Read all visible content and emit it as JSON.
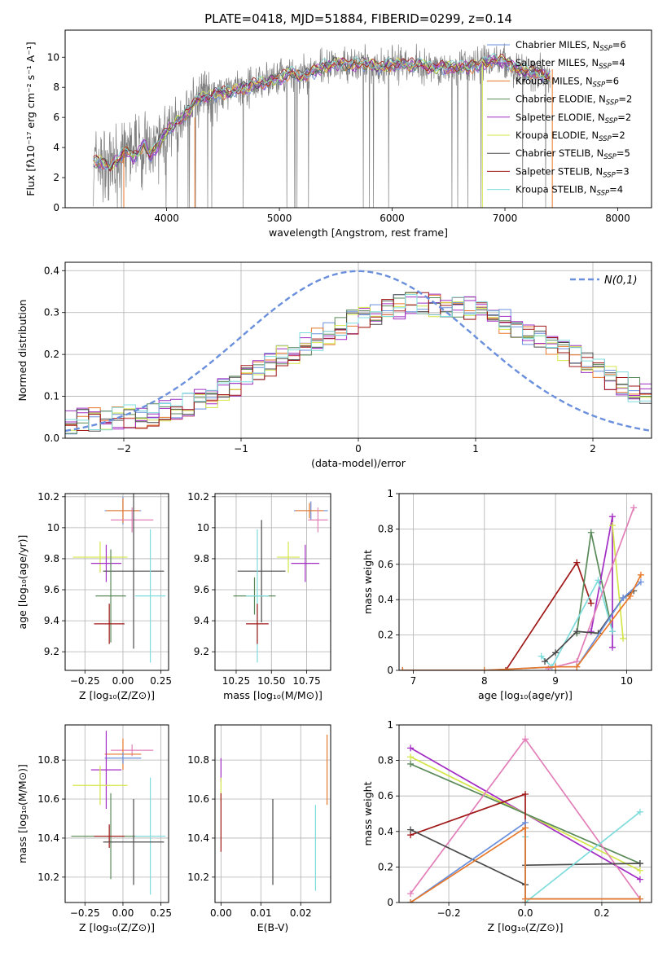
{
  "chart_data": [
    {
      "id": "spectrum",
      "type": "line",
      "title": "PLATE=0418, MJD=51884, FIBERID=0299, z=0.14",
      "xlabel": "wavelength [Angstrom, rest frame]",
      "ylabel": "Flux [fλ10⁻¹⁷ erg cm⁻² s⁻¹ A⁻¹]",
      "xlim": [
        3100,
        8300
      ],
      "ylim": [
        0,
        11.8
      ],
      "xticks": [
        4000,
        5000,
        6000,
        7000,
        8000
      ],
      "yticks": [
        0,
        2,
        4,
        6,
        8,
        10
      ],
      "grid": false,
      "legend_position": "top-right",
      "data_x_range": [
        3350,
        7400
      ],
      "data_curve": {
        "x": [
          3350,
          3400,
          3450,
          3500,
          3550,
          3600,
          3650,
          3700,
          3750,
          3800,
          3850,
          3900,
          3950,
          4000,
          4100,
          4200,
          4300,
          4400,
          4500,
          4600,
          4700,
          4800,
          4900,
          5000,
          5100,
          5200,
          5300,
          5400,
          5500,
          5600,
          5700,
          5800,
          5900,
          6000,
          6100,
          6200,
          6300,
          6400,
          6500,
          6600,
          6700,
          6800,
          6900,
          7000,
          7100,
          7200,
          7300,
          7400
        ],
        "y": [
          3.0,
          3.1,
          2.9,
          2.7,
          3.2,
          3.4,
          3.7,
          3.3,
          3.8,
          4.3,
          3.5,
          3.8,
          4.5,
          5.1,
          5.8,
          6.4,
          7.4,
          7.5,
          7.6,
          7.8,
          8.0,
          8.2,
          8.4,
          8.6,
          8.9,
          8.8,
          9.0,
          9.4,
          9.6,
          9.5,
          9.5,
          9.6,
          9.3,
          9.5,
          9.6,
          9.5,
          9.4,
          9.3,
          9.3,
          9.4,
          9.3,
          9.6,
          9.8,
          9.7,
          9.3,
          9.0,
          8.9,
          8.8
        ]
      },
      "series": [
        {
          "name": "Chabrier MILES, N_SSP=6",
          "color": "#6a8fdc"
        },
        {
          "name": "Salpeter MILES, N_SSP=4",
          "color": "#9b2fbf"
        },
        {
          "name": "Kroupa MILES, N_SSP=6",
          "color": "#e8782a"
        },
        {
          "name": "Chabrier ELODIE, N_SSP=2",
          "color": "#5a8a5a"
        },
        {
          "name": "Salpeter ELODIE, N_SSP=2",
          "color": "#a32cc4"
        },
        {
          "name": "Kroupa ELODIE, N_SSP=2",
          "color": "#d4e64a"
        },
        {
          "name": "Chabrier STELIB, N_SSP=5",
          "color": "#4a4a4a"
        },
        {
          "name": "Salpeter STELIB, N_SSP=3",
          "color": "#a01818"
        },
        {
          "name": "Kroupa STELIB, N_SSP=4",
          "color": "#7fdcdc"
        }
      ],
      "legend_entries": [
        {
          "pre": "Chabrier MILES, N",
          "sub": "SSP",
          "post": "=6",
          "color": "#6a8fdc"
        },
        {
          "pre": "Salpeter MILES, N",
          "sub": "SSP",
          "post": "=4",
          "color": "#9b2fbf"
        },
        {
          "pre": "Kroupa MILES, N",
          "sub": "SSP",
          "post": "=6",
          "color": "#e8782a"
        },
        {
          "pre": "Chabrier ELODIE, N",
          "sub": "SSP",
          "post": "=2",
          "color": "#5a8a5a"
        },
        {
          "pre": "Salpeter ELODIE, N",
          "sub": "SSP",
          "post": "=2",
          "color": "#a32cc4"
        },
        {
          "pre": "Kroupa ELODIE, N",
          "sub": "SSP",
          "post": "=2",
          "color": "#d4e64a"
        },
        {
          "pre": "Chabrier STELIB, N",
          "sub": "SSP",
          "post": "=5",
          "color": "#4a4a4a"
        },
        {
          "pre": "Salpeter STELIB, N",
          "sub": "SSP",
          "post": "=3",
          "color": "#a01818"
        },
        {
          "pre": "Kroupa STELIB, N",
          "sub": "SSP",
          "post": "=4",
          "color": "#7fdcdc"
        }
      ]
    },
    {
      "id": "residuals",
      "type": "line",
      "xlabel": "(data-model)/error",
      "ylabel": "Normed distribution",
      "xlim": [
        -2.5,
        2.5
      ],
      "ylim": [
        0,
        0.42
      ],
      "xticks": [
        -2,
        -1,
        0,
        1,
        2
      ],
      "xtick_labels": [
        "−2",
        "−1",
        "0",
        "1",
        "2"
      ],
      "yticks": [
        0.0,
        0.1,
        0.2,
        0.3,
        0.4
      ],
      "ytick_labels": [
        "0.0",
        "0.1",
        "0.2",
        "0.3",
        "0.4"
      ],
      "grid": true,
      "legend_position": "top-right",
      "reference_curve": {
        "name": "N(0,1)",
        "color": "#6a8fdc",
        "style": "dashed"
      },
      "bin_width": 0.1,
      "bin_start": -2.5,
      "histogram_profile": [
        0.04,
        0.042,
        0.044,
        0.046,
        0.048,
        0.05,
        0.052,
        0.056,
        0.06,
        0.068,
        0.078,
        0.09,
        0.102,
        0.116,
        0.13,
        0.145,
        0.16,
        0.176,
        0.192,
        0.208,
        0.224,
        0.238,
        0.252,
        0.265,
        0.278,
        0.29,
        0.3,
        0.308,
        0.314,
        0.318,
        0.32,
        0.32,
        0.318,
        0.314,
        0.308,
        0.3,
        0.29,
        0.278,
        0.265,
        0.252,
        0.238,
        0.224,
        0.208,
        0.192,
        0.176,
        0.16,
        0.145,
        0.13,
        0.116,
        0.102
      ]
    },
    {
      "id": "age-vs-Z",
      "type": "scatter",
      "xlabel": "Z [log₁₀(Z/Z⊙)]",
      "ylabel": "age  [log₁₀(age/yr)]",
      "xlim": [
        -0.38,
        0.3
      ],
      "ylim": [
        9.08,
        10.22
      ],
      "xticks": [
        -0.25,
        0.0,
        0.25
      ],
      "xtick_labels": [
        "−0.25",
        "0.00",
        "0.25"
      ],
      "yticks": [
        9.2,
        9.4,
        9.6,
        9.8,
        10.0,
        10.2
      ],
      "grid": true,
      "points": [
        {
          "x": 0.0,
          "y": 10.11,
          "xerr": 0.12,
          "yerr": 0.09,
          "color": "#6a8fdc"
        },
        {
          "x": 0.0,
          "y": 10.11,
          "xerr": 0.11,
          "yerr": 0.08,
          "color": "#e8782a"
        },
        {
          "x": 0.06,
          "y": 10.05,
          "xerr": 0.14,
          "yerr": 0.08,
          "color": "#e27fb8"
        },
        {
          "x": -0.15,
          "y": 9.81,
          "xerr": 0.18,
          "yerr": 0.1,
          "color": "#d4e64a"
        },
        {
          "x": -0.11,
          "y": 9.77,
          "xerr": 0.1,
          "yerr": 0.12,
          "color": "#a32cc4"
        },
        {
          "x": 0.07,
          "y": 9.72,
          "xerr": 0.2,
          "yerr": 0.5,
          "color": "#4a4a4a"
        },
        {
          "x": -0.08,
          "y": 9.56,
          "xerr": 0.1,
          "yerr": 0.3,
          "color": "#5a8a5a"
        },
        {
          "x": 0.18,
          "y": 9.56,
          "xerr": 0.1,
          "yerr": 0.43,
          "color": "#7fdcdc"
        },
        {
          "x": -0.09,
          "y": 9.38,
          "xerr": 0.1,
          "yerr": 0.13,
          "color": "#a01818"
        }
      ]
    },
    {
      "id": "age-vs-mass",
      "type": "scatter",
      "xlabel": "mass [log₁₀(M/M⊙)]",
      "xlim": [
        10.1,
        10.92
      ],
      "ylim": [
        9.08,
        10.22
      ],
      "xticks": [
        10.25,
        10.5,
        10.75
      ],
      "xtick_labels": [
        "10.25",
        "10.50",
        "10.75"
      ],
      "yticks": [
        9.2,
        9.4,
        9.6,
        9.8,
        10.0,
        10.2
      ],
      "grid": true,
      "points": [
        {
          "x": 10.78,
          "y": 10.11,
          "xerr": 0.12,
          "yerr": 0.06,
          "color": "#6a8fdc"
        },
        {
          "x": 10.77,
          "y": 10.11,
          "xerr": 0.1,
          "yerr": 0.05,
          "color": "#e8782a"
        },
        {
          "x": 10.83,
          "y": 10.05,
          "xerr": 0.07,
          "yerr": 0.08,
          "color": "#e27fb8"
        },
        {
          "x": 10.62,
          "y": 9.81,
          "xerr": 0.08,
          "yerr": 0.1,
          "color": "#d4e64a"
        },
        {
          "x": 10.74,
          "y": 9.77,
          "xerr": 0.1,
          "yerr": 0.12,
          "color": "#a32cc4"
        },
        {
          "x": 10.43,
          "y": 9.72,
          "xerr": 0.17,
          "yerr": 0.33,
          "color": "#4a4a4a"
        },
        {
          "x": 10.38,
          "y": 9.56,
          "xerr": 0.15,
          "yerr": 0.12,
          "color": "#5a8a5a"
        },
        {
          "x": 10.4,
          "y": 9.56,
          "xerr": 0.08,
          "yerr": 0.43,
          "color": "#7fdcdc"
        },
        {
          "x": 10.4,
          "y": 9.38,
          "xerr": 0.08,
          "yerr": 0.13,
          "color": "#a01818"
        }
      ]
    },
    {
      "id": "mass-weight-vs-age",
      "type": "line",
      "xlabel": "age  [log₁₀(age/yr)]",
      "ylabel": "mass weight",
      "xlim": [
        6.8,
        10.35
      ],
      "ylim": [
        0.0,
        1.0
      ],
      "xticks": [
        7,
        8,
        9,
        10
      ],
      "yticks": [
        0.0,
        0.2,
        0.4,
        0.6,
        0.8,
        1.0
      ],
      "grid": true,
      "series": [
        {
          "color": "#a01818",
          "x": [
            6.85,
            8.3,
            9.3,
            9.5
          ],
          "y": [
            0.0,
            0.0,
            0.61,
            0.38
          ]
        },
        {
          "color": "#5a8a5a",
          "x": [
            9.3,
            9.5,
            9.8
          ],
          "y": [
            0.21,
            0.78,
            0.22
          ]
        },
        {
          "color": "#a32cc4",
          "x": [
            9.5,
            9.8,
            9.8
          ],
          "y": [
            0.22,
            0.87,
            0.13
          ]
        },
        {
          "color": "#d4e64a",
          "x": [
            9.8,
            9.95
          ],
          "y": [
            0.82,
            0.18
          ]
        },
        {
          "color": "#7fdcdc",
          "x": [
            8.8,
            8.95,
            9.6,
            9.8
          ],
          "y": [
            0.08,
            0.02,
            0.51,
            0.22
          ]
        },
        {
          "color": "#e27fb8",
          "x": [
            8.9,
            9.3,
            10.1
          ],
          "y": [
            0.01,
            0.05,
            0.92
          ]
        },
        {
          "color": "#4a4a4a",
          "x": [
            8.85,
            9.0,
            9.3,
            9.6,
            9.95,
            10.1
          ],
          "y": [
            0.05,
            0.1,
            0.22,
            0.21,
            0.41,
            0.45
          ]
        },
        {
          "color": "#6a8fdc",
          "x": [
            6.85,
            8.0,
            9.0,
            9.3,
            9.95,
            10.2
          ],
          "y": [
            0.0,
            0.0,
            0.02,
            0.02,
            0.41,
            0.5
          ]
        },
        {
          "color": "#e8782a",
          "x": [
            6.85,
            8.0,
            9.0,
            9.3,
            10.05,
            10.2
          ],
          "y": [
            0.0,
            0.0,
            0.02,
            0.02,
            0.42,
            0.54
          ]
        }
      ]
    },
    {
      "id": "mass-vs-Z",
      "type": "scatter",
      "xlabel": "Z [log₁₀(Z/Z⊙)]",
      "ylabel": "mass [log₁₀(M/M⊙)]",
      "xlim": [
        -0.38,
        0.3
      ],
      "ylim": [
        10.07,
        10.98
      ],
      "xticks": [
        -0.25,
        0.0,
        0.25
      ],
      "xtick_labels": [
        "−0.25",
        "0.00",
        "0.25"
      ],
      "yticks": [
        10.2,
        10.4,
        10.6,
        10.8
      ],
      "grid": true,
      "points": [
        {
          "x": 0.06,
          "y": 10.85,
          "xerr": 0.14,
          "yerr": 0.03,
          "color": "#e27fb8"
        },
        {
          "x": 0.0,
          "y": 10.83,
          "xerr": 0.12,
          "yerr": 0.08,
          "color": "#e8782a"
        },
        {
          "x": 0.0,
          "y": 10.81,
          "xerr": 0.12,
          "yerr": 0.03,
          "color": "#6a8fdc"
        },
        {
          "x": -0.11,
          "y": 10.75,
          "xerr": 0.1,
          "yerr": 0.2,
          "color": "#a32cc4"
        },
        {
          "x": -0.15,
          "y": 10.67,
          "xerr": 0.18,
          "yerr": 0.1,
          "color": "#d4e64a"
        },
        {
          "x": -0.08,
          "y": 10.41,
          "xerr": 0.26,
          "yerr": 0.22,
          "color": "#5a8a5a"
        },
        {
          "x": -0.09,
          "y": 10.41,
          "xerr": 0.1,
          "yerr": 0.06,
          "color": "#a01818"
        },
        {
          "x": 0.18,
          "y": 10.41,
          "xerr": 0.1,
          "yerr": 0.3,
          "color": "#7fdcdc"
        },
        {
          "x": 0.07,
          "y": 10.38,
          "xerr": 0.2,
          "yerr": 0.22,
          "color": "#4a4a4a"
        }
      ]
    },
    {
      "id": "mass-vs-ebv",
      "type": "scatter",
      "xlabel": "E(B-V)",
      "xlim": [
        -0.0015,
        0.0275
      ],
      "ylim": [
        10.07,
        10.98
      ],
      "xticks": [
        0.0,
        0.01,
        0.02
      ],
      "xtick_labels": [
        "0.00",
        "0.01",
        "0.02"
      ],
      "yticks": [
        10.2,
        10.4,
        10.6,
        10.8
      ],
      "grid": true,
      "points": [
        {
          "x": 0.0,
          "y": 10.75,
          "yerr": 0.06,
          "color": "#a32cc4"
        },
        {
          "x": 0.0,
          "y": 10.65,
          "yerr": 0.06,
          "color": "#d4e64a"
        },
        {
          "x": 0.0,
          "y": 10.48,
          "yerr": 0.15,
          "color": "#a01818"
        },
        {
          "x": 0.013,
          "y": 10.38,
          "yerr": 0.22,
          "color": "#4a4a4a"
        },
        {
          "x": 0.0237,
          "y": 10.35,
          "yerr": 0.22,
          "color": "#7fdcdc"
        },
        {
          "x": 0.0266,
          "y": 10.75,
          "yerr": 0.18,
          "color": "#e8782a"
        }
      ]
    },
    {
      "id": "mass-weight-vs-Z",
      "type": "line",
      "xlabel": "Z [log₁₀(Z/Z⊙)]",
      "ylabel": "mass weight",
      "xlim": [
        -0.33,
        0.33
      ],
      "ylim": [
        0.0,
        1.0
      ],
      "xticks": [
        -0.2,
        0.0,
        0.2
      ],
      "xtick_labels": [
        "−0.2",
        "0.0",
        "0.2"
      ],
      "yticks": [
        0.0,
        0.2,
        0.4,
        0.6,
        0.8,
        1.0
      ],
      "grid": true,
      "series": [
        {
          "color": "#a32cc4",
          "x": [
            -0.3,
            0.3
          ],
          "y": [
            0.87,
            0.13
          ]
        },
        {
          "color": "#d4e64a",
          "x": [
            -0.3,
            0.3
          ],
          "y": [
            0.82,
            0.18
          ]
        },
        {
          "color": "#5a8a5a",
          "x": [
            -0.3,
            0.3
          ],
          "y": [
            0.78,
            0.22
          ]
        },
        {
          "color": "#e27fb8",
          "x": [
            -0.3,
            0.0,
            0.3
          ],
          "y": [
            0.05,
            0.92,
            0.02
          ]
        },
        {
          "color": "#a01818",
          "x": [
            -0.3,
            0.0,
            0.0
          ],
          "y": [
            0.38,
            0.61,
            0.0
          ]
        },
        {
          "color": "#4a4a4a",
          "x": [
            -0.3,
            0.0,
            0.0,
            0.3
          ],
          "y": [
            0.41,
            0.1,
            0.21,
            0.22
          ]
        },
        {
          "color": "#7fdcdc",
          "x": [
            0.0,
            0.0,
            0.3
          ],
          "y": [
            0.37,
            0.0,
            0.51
          ]
        },
        {
          "color": "#6a8fdc",
          "x": [
            -0.3,
            0.0,
            0.0,
            0.3
          ],
          "y": [
            0.0,
            0.45,
            0.02,
            0.02
          ]
        },
        {
          "color": "#e8782a",
          "x": [
            -0.3,
            0.0,
            0.0,
            0.3
          ],
          "y": [
            0.0,
            0.42,
            0.02,
            0.02
          ]
        }
      ]
    }
  ]
}
